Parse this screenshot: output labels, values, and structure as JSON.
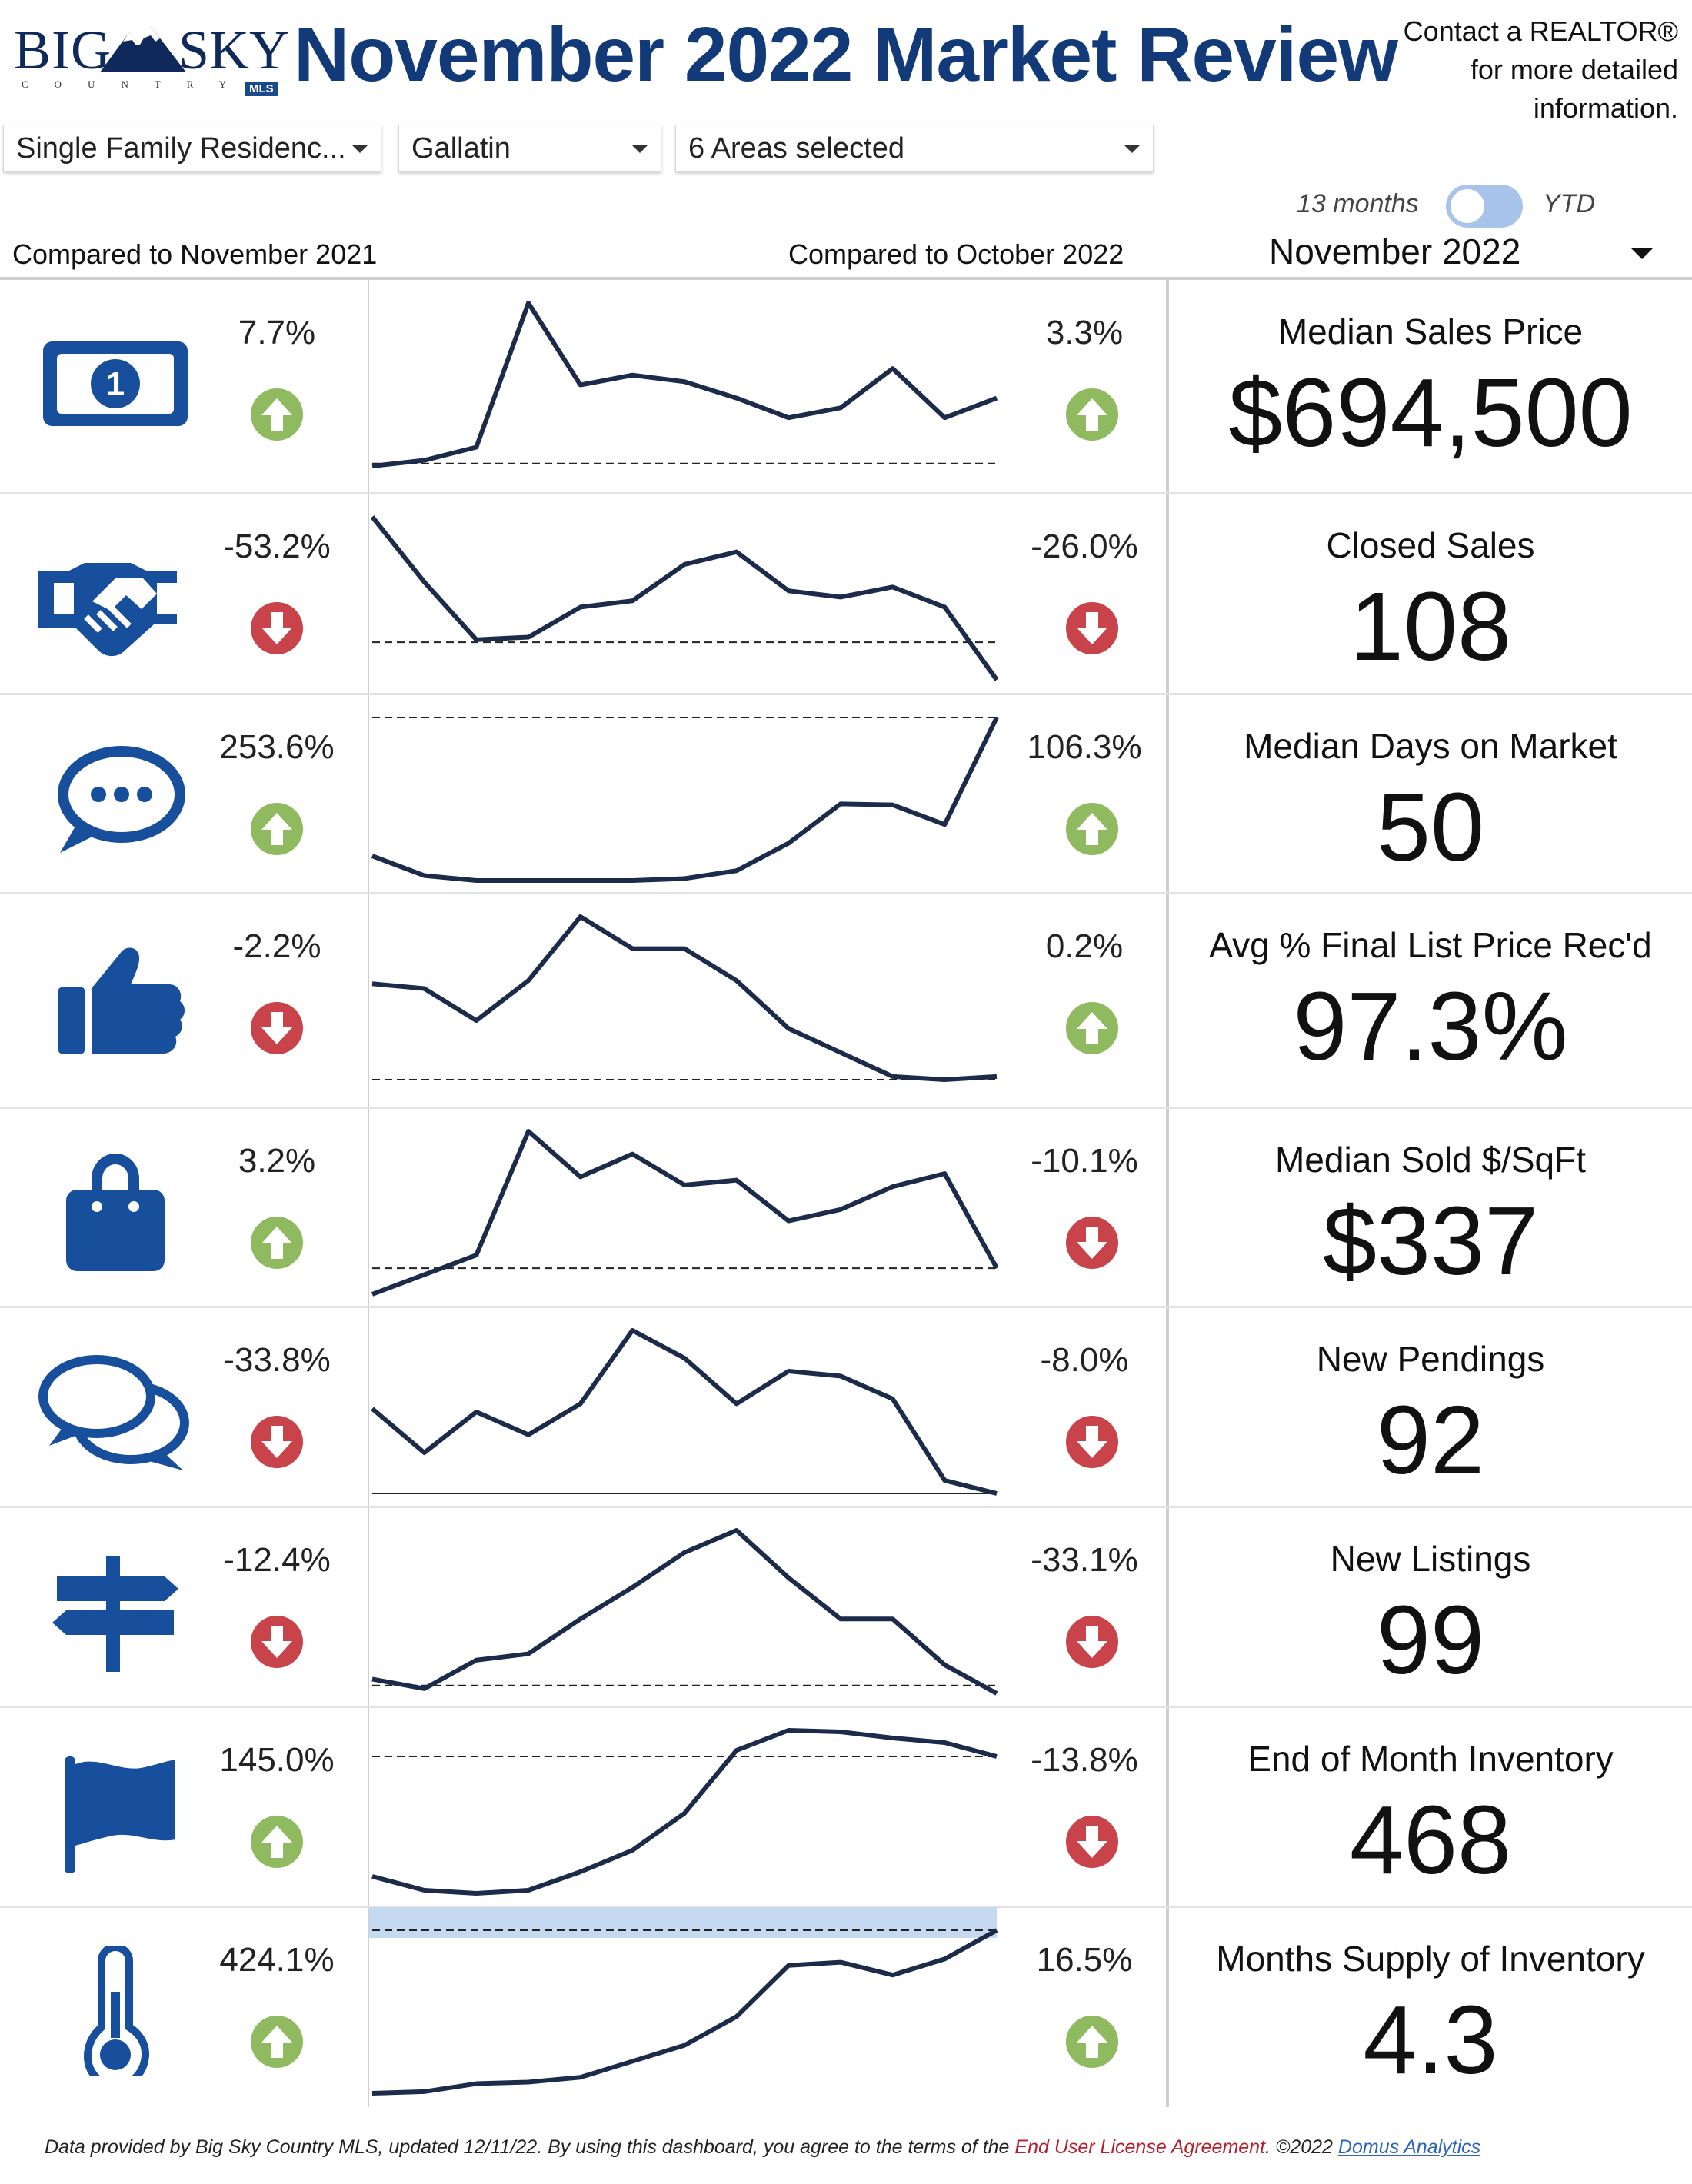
{
  "header": {
    "logo_big": "BIG",
    "logo_sky": "SKY",
    "logo_country": "COUNTRY",
    "logo_mls": "MLS",
    "title": "November 2022 Market Review",
    "contact_line1": "Contact a REALTOR®",
    "contact_line2": "for more detailed",
    "contact_line3": "information."
  },
  "filters": {
    "type": "Single Family Residenc...",
    "county": "Gallatin",
    "areas": "6 Areas selected"
  },
  "toggle": {
    "left_label": "13 months",
    "right_label": "YTD"
  },
  "month": "November 2022",
  "compare": {
    "left": "Compared to November 2021",
    "right": "Compared to October 2022"
  },
  "colors": {
    "up": "#8fba5f",
    "down": "#c9444a",
    "icon": "#174f9c",
    "line": "#1c2b4a"
  },
  "rows": [
    {
      "label": "Median Sales Price",
      "value": "$694,500",
      "yoy": "7.7%",
      "yoy_dir": "up",
      "mom": "3.3%",
      "mom_dir": "up",
      "icon": "money-bill-icon",
      "trend": [
        0.5,
        4,
        12,
        100,
        50,
        56,
        52,
        42,
        30,
        36,
        60,
        30,
        42
      ],
      "ref": 2,
      "ref_style": "dashed"
    },
    {
      "label": "Closed Sales",
      "value": "108",
      "yoy": "-53.2%",
      "yoy_dir": "down",
      "mom": "-26.0%",
      "mom_dir": "down",
      "icon": "handshake-icon",
      "trend": [
        100,
        48,
        2,
        4,
        28,
        33,
        62,
        72,
        41,
        36,
        44,
        28,
        -30
      ],
      "ref": 0,
      "ref_style": "dashed"
    },
    {
      "label": "Median Days on Market",
      "value": "50",
      "yoy": "253.6%",
      "yoy_dir": "up",
      "mom": "106.3%",
      "mom_dir": "up",
      "icon": "chat-bubble-icon",
      "trend": [
        25,
        5,
        0,
        0,
        0,
        0,
        2,
        10,
        38,
        78,
        77,
        57,
        166
      ],
      "ref": 166,
      "ref_style": "dashed"
    },
    {
      "label": "Avg % Final List Price Rec'd",
      "value": "97.3%",
      "yoy": "-2.2%",
      "yoy_dir": "down",
      "mom": "0.2%",
      "mom_dir": "up",
      "icon": "thumbs-up-icon",
      "trend": [
        58,
        55,
        35,
        60,
        100,
        80,
        80,
        60,
        30,
        15,
        0,
        -2,
        0
      ],
      "ref": -2,
      "ref_style": "dashed"
    },
    {
      "label": "Median Sold $/SqFt",
      "value": "$337",
      "yoy": "3.2%",
      "yoy_dir": "up",
      "mom": "-10.1%",
      "mom_dir": "down",
      "icon": "shopping-bag-icon",
      "trend": [
        0,
        12,
        24,
        100,
        72,
        86,
        67,
        70,
        45,
        52,
        66,
        74,
        16
      ],
      "ref": 16,
      "ref_style": "dashed"
    },
    {
      "label": "New Pendings",
      "value": "92",
      "yoy": "-33.8%",
      "yoy_dir": "down",
      "mom": "-8.0%",
      "mom_dir": "down",
      "icon": "conversation-icon",
      "trend": [
        52,
        25,
        50,
        36,
        55,
        100,
        83,
        55,
        75,
        72,
        58,
        8,
        0
      ],
      "ref": 0,
      "ref_style": "solid"
    },
    {
      "label": "New Listings",
      "value": "99",
      "yoy": "-12.4%",
      "yoy_dir": "down",
      "mom": "-33.1%",
      "mom_dir": "down",
      "icon": "signpost-icon",
      "trend": [
        6,
        0,
        18,
        22,
        44,
        64,
        86,
        100,
        70,
        44,
        44,
        15,
        -3
      ],
      "ref": 2,
      "ref_style": "dashed"
    },
    {
      "label": "End of Month Inventory",
      "value": "468",
      "yoy": "145.0%",
      "yoy_dir": "up",
      "mom": "-13.8%",
      "mom_dir": "down",
      "icon": "flag-icon",
      "trend": [
        5,
        -4,
        -6,
        -4,
        8,
        22,
        46,
        87,
        100,
        99,
        95,
        92,
        83
      ],
      "ref": 83,
      "ref_style": "dashed"
    },
    {
      "label": "Months Supply of Inventory",
      "value": "4.3",
      "yoy": "424.1%",
      "yoy_dir": "up",
      "mom": "16.5%",
      "mom_dir": "up",
      "icon": "thermometer-icon",
      "trend": [
        0,
        1,
        6,
        7,
        10,
        20,
        30,
        48,
        80,
        82,
        74,
        84,
        102
      ],
      "ref": 102,
      "ref_style": "dashed",
      "band": true
    }
  ],
  "footer": {
    "text": "Data provided by Big Sky Country MLS, updated 12/11/22.  By using this dashboard, you agree to the terms of the ",
    "eula": "End User License Agreement",
    "copyright": ".  ©2022 ",
    "link": "Domus Analytics"
  }
}
